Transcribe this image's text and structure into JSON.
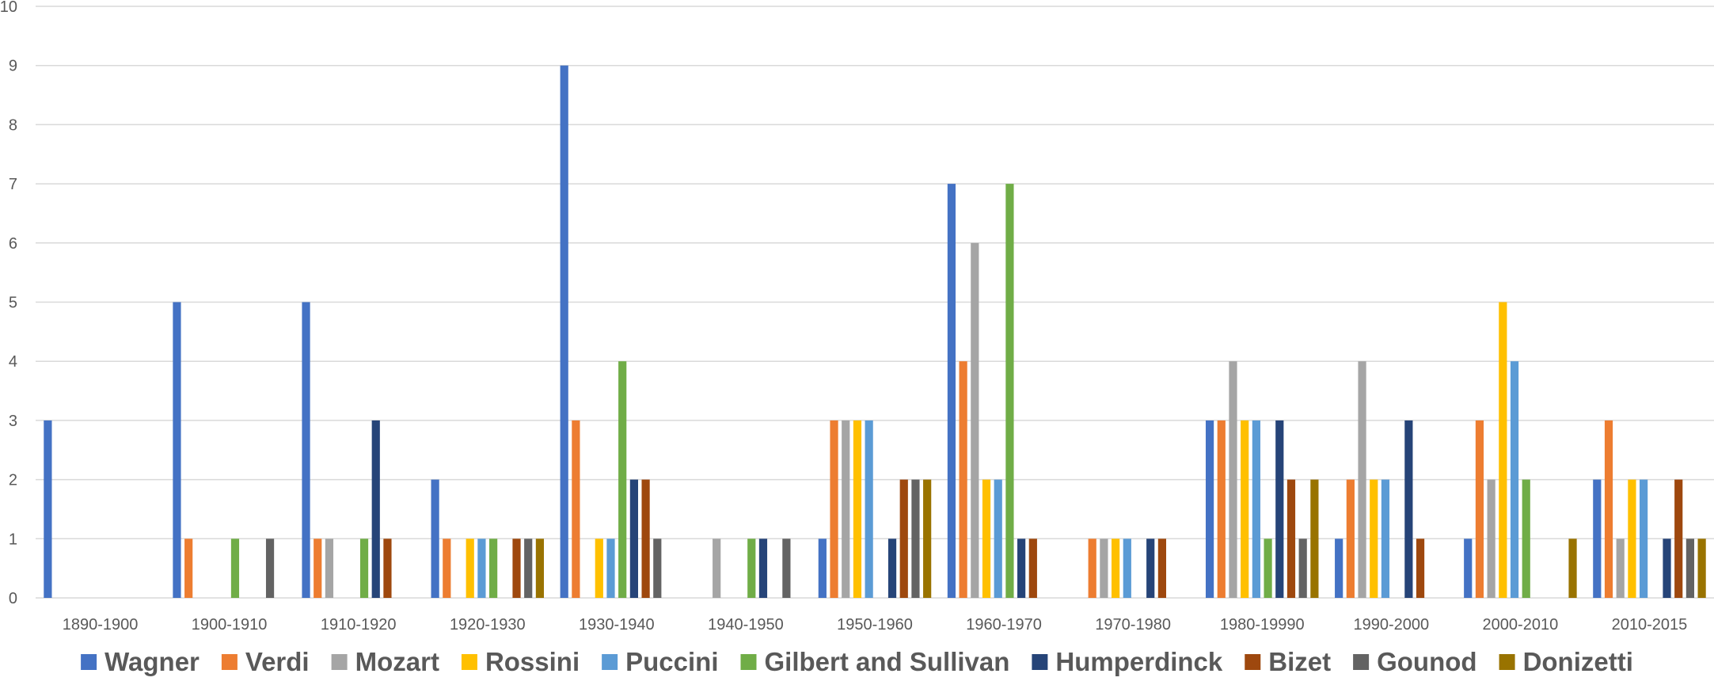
{
  "chart_data": {
    "type": "bar",
    "title": "",
    "xlabel": "",
    "ylabel": "",
    "ylim": [
      0,
      10
    ],
    "yticks": [
      0,
      1,
      2,
      3,
      4,
      5,
      6,
      7,
      8,
      9,
      10
    ],
    "grid": true,
    "legend_position": "bottom",
    "categories": [
      "1890-1900",
      "1900-1910",
      "1910-1920",
      "1920-1930",
      "1930-1940",
      "1940-1950",
      "1950-1960",
      "1960-1970",
      "1970-1980",
      "1980-19990",
      "1990-2000",
      "2000-2010",
      "2010-2015"
    ],
    "series": [
      {
        "name": "Wagner",
        "color": "#4472c4",
        "values": [
          3,
          5,
          5,
          2,
          9,
          0,
          1,
          7,
          0,
          3,
          1,
          1,
          2
        ]
      },
      {
        "name": "Verdi",
        "color": "#ed7d31",
        "values": [
          0,
          1,
          1,
          1,
          3,
          0,
          3,
          4,
          1,
          3,
          2,
          3,
          3
        ]
      },
      {
        "name": "Mozart",
        "color": "#a5a5a5",
        "values": [
          0,
          0,
          1,
          0,
          0,
          1,
          3,
          6,
          1,
          4,
          4,
          2,
          1
        ]
      },
      {
        "name": "Rossini",
        "color": "#ffc000",
        "values": [
          0,
          0,
          0,
          1,
          1,
          0,
          3,
          2,
          1,
          3,
          2,
          5,
          2
        ]
      },
      {
        "name": "Puccini",
        "color": "#5b9bd5",
        "values": [
          0,
          0,
          0,
          1,
          1,
          0,
          3,
          2,
          1,
          3,
          2,
          4,
          2
        ]
      },
      {
        "name": "Gilbert and Sullivan",
        "color": "#70ad47",
        "values": [
          0,
          1,
          1,
          1,
          4,
          1,
          0,
          7,
          0,
          1,
          0,
          2,
          0
        ]
      },
      {
        "name": "Humperdinck",
        "color": "#264478",
        "values": [
          0,
          0,
          3,
          0,
          2,
          1,
          1,
          1,
          1,
          3,
          3,
          0,
          1
        ]
      },
      {
        "name": "Bizet",
        "color": "#9e480e",
        "values": [
          0,
          0,
          1,
          1,
          2,
          0,
          2,
          1,
          1,
          2,
          1,
          0,
          2
        ]
      },
      {
        "name": "Gounod",
        "color": "#636363",
        "values": [
          0,
          1,
          0,
          1,
          1,
          1,
          2,
          0,
          0,
          1,
          0,
          0,
          1
        ]
      },
      {
        "name": "Donizetti",
        "color": "#997300",
        "values": [
          0,
          0,
          0,
          1,
          0,
          0,
          2,
          0,
          0,
          2,
          0,
          1,
          1
        ]
      }
    ]
  }
}
